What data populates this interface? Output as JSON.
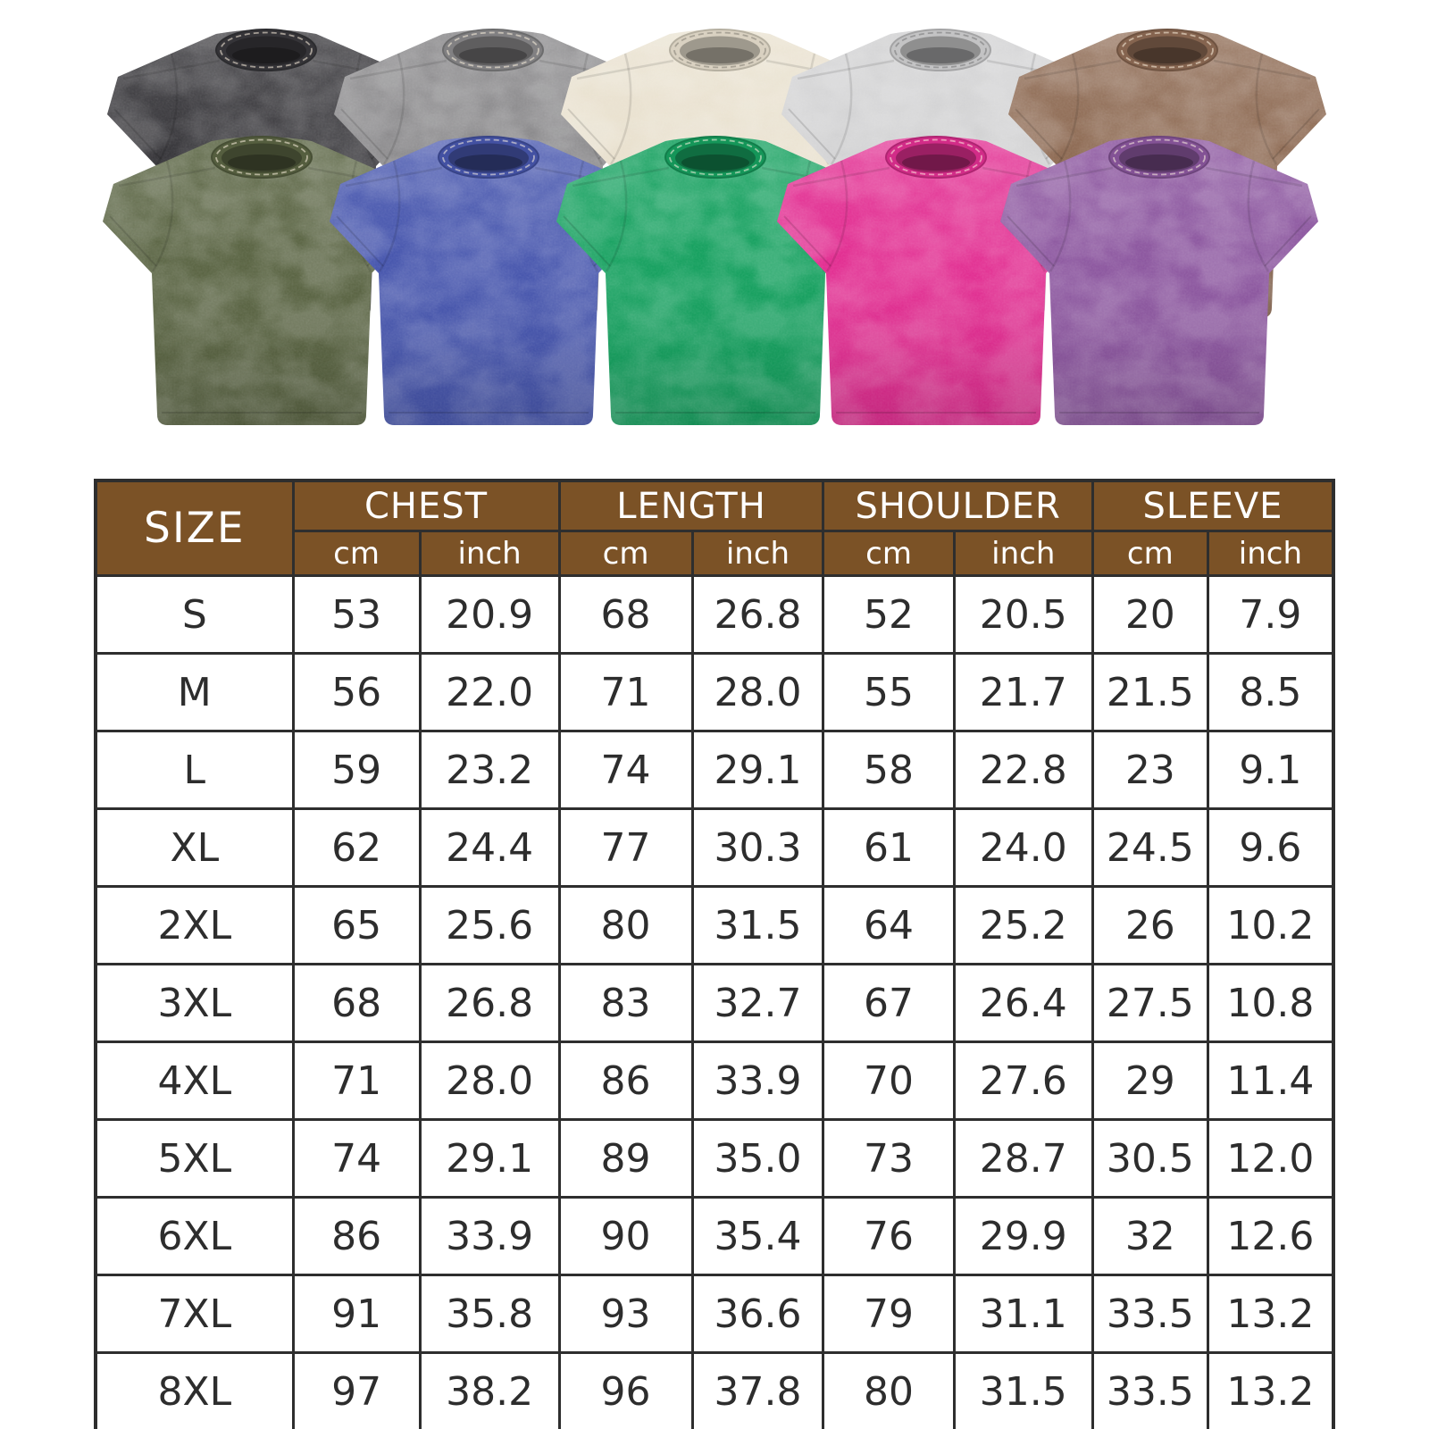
{
  "page_background": "#ffffff",
  "shirts": {
    "back_row": [
      {
        "name": "black",
        "color": "#39383c"
      },
      {
        "name": "gray",
        "color": "#8b8a8c"
      },
      {
        "name": "cream",
        "color": "#e9e1cf"
      },
      {
        "name": "light-gray",
        "color": "#d2d2d3"
      },
      {
        "name": "brown",
        "color": "#8f6c55"
      }
    ],
    "front_row": [
      {
        "name": "army-green",
        "color": "#5b6544"
      },
      {
        "name": "royal-blue",
        "color": "#4857ae"
      },
      {
        "name": "green",
        "color": "#17a160"
      },
      {
        "name": "rose-pink",
        "color": "#e22f92"
      },
      {
        "name": "purple",
        "color": "#8d58a0"
      }
    ]
  },
  "size_chart": {
    "header_bg": "#7b5226",
    "header_text_color": "#ffffff",
    "border_color": "#2e2e2e",
    "body_text_color": "#2d2d2d",
    "size_label": "SIZE",
    "groups": [
      {
        "label": "CHEST",
        "units": [
          "cm",
          "inch"
        ]
      },
      {
        "label": "LENGTH",
        "units": [
          "cm",
          "inch"
        ]
      },
      {
        "label": "SHOULDER",
        "units": [
          "cm",
          "inch"
        ]
      },
      {
        "label": "SLEEVE",
        "units": [
          "cm",
          "inch"
        ]
      }
    ],
    "rows": [
      {
        "size": "S",
        "values": [
          "53",
          "20.9",
          "68",
          "26.8",
          "52",
          "20.5",
          "20",
          "7.9"
        ]
      },
      {
        "size": "M",
        "values": [
          "56",
          "22.0",
          "71",
          "28.0",
          "55",
          "21.7",
          "21.5",
          "8.5"
        ]
      },
      {
        "size": "L",
        "values": [
          "59",
          "23.2",
          "74",
          "29.1",
          "58",
          "22.8",
          "23",
          "9.1"
        ]
      },
      {
        "size": "XL",
        "values": [
          "62",
          "24.4",
          "77",
          "30.3",
          "61",
          "24.0",
          "24.5",
          "9.6"
        ]
      },
      {
        "size": "2XL",
        "values": [
          "65",
          "25.6",
          "80",
          "31.5",
          "64",
          "25.2",
          "26",
          "10.2"
        ]
      },
      {
        "size": "3XL",
        "values": [
          "68",
          "26.8",
          "83",
          "32.7",
          "67",
          "26.4",
          "27.5",
          "10.8"
        ]
      },
      {
        "size": "4XL",
        "values": [
          "71",
          "28.0",
          "86",
          "33.9",
          "70",
          "27.6",
          "29",
          "11.4"
        ]
      },
      {
        "size": "5XL",
        "values": [
          "74",
          "29.1",
          "89",
          "35.0",
          "73",
          "28.7",
          "30.5",
          "12.0"
        ]
      },
      {
        "size": "6XL",
        "values": [
          "86",
          "33.9",
          "90",
          "35.4",
          "76",
          "29.9",
          "32",
          "12.6"
        ]
      },
      {
        "size": "7XL",
        "values": [
          "91",
          "35.8",
          "93",
          "36.6",
          "79",
          "31.1",
          "33.5",
          "13.2"
        ]
      },
      {
        "size": "8XL",
        "values": [
          "97",
          "38.2",
          "96",
          "37.8",
          "80",
          "31.5",
          "33.5",
          "13.2"
        ]
      }
    ]
  }
}
